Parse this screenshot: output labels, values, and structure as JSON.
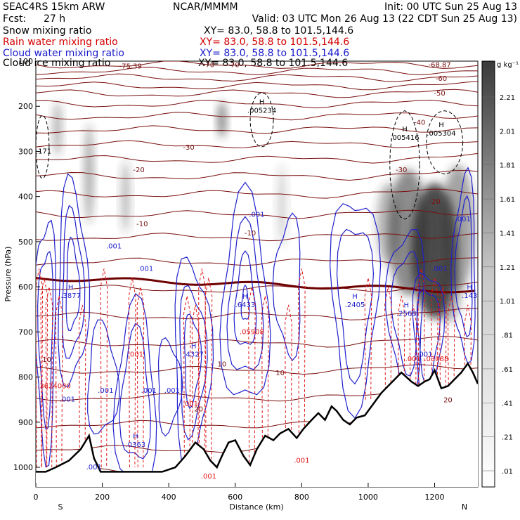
{
  "header": {
    "model": "SEAC4RS 15km ARW",
    "center": "NCAR/MMMM",
    "init": "Init: 00 UTC Sun 25 Aug 13",
    "fcst_label": "Fcst:",
    "fcst_value": "27 h",
    "valid": "Valid: 03 UTC Mon 26 Aug 13 (22 CDT Sun 25 Aug 13)"
  },
  "fields": [
    {
      "name": "Snow mixing ratio",
      "xy": "XY=  83.0, 58.8 to 101.5,144.6",
      "color": "#000000"
    },
    {
      "name": "Rain water mixing ratio",
      "xy": "XY=  83.0, 58.8 to 101.5,144.6",
      "color": "#d40000"
    },
    {
      "name": "Cloud water mixing ratio",
      "xy": "XY=  83.0, 58.8 to 101.5,144.6",
      "color": "#1a1acc"
    },
    {
      "name": "Cloud ice mixing ratio",
      "xy": "XY=  83.0, 58.8 to 101.5,144.6",
      "color": "#000000"
    }
  ],
  "colors": {
    "theta": "#7a0f0f",
    "freezing": "#6e0000",
    "rain": "#e01818",
    "cloud": "#2020cc",
    "ice": "#000000",
    "terrain": "#000000"
  },
  "chart_data": {
    "type": "contour",
    "xlabel": "Distance (km)",
    "ylabel": "Pressure (hPa)",
    "xlim": [
      0,
      1330
    ],
    "ylim": [
      1000,
      100
    ],
    "xticks": [
      0,
      200,
      400,
      600,
      800,
      1000,
      1200
    ],
    "yticks": [
      100,
      200,
      300,
      400,
      500,
      600,
      700,
      800,
      900,
      1000
    ],
    "endpoint_labels": [
      "S",
      "N"
    ],
    "colorbar": {
      "unit": "g kg⁻¹",
      "levels": [
        ".01",
        ".21",
        ".41",
        ".61",
        ".81",
        "1.01",
        "1.21",
        "1.41",
        "1.61",
        "1.81",
        "2.01",
        "2.21"
      ]
    },
    "temperature_contours": [
      {
        "label": "-75.39",
        "x": 285,
        "p": 110
      },
      {
        "label": "-70",
        "x": 520,
        "p": 107
      },
      {
        "label": "-70",
        "x": 595,
        "p": 107
      },
      {
        "label": "-68.87",
        "x": 1215,
        "p": 107
      },
      {
        "label": "-60",
        "x": 1220,
        "p": 137
      },
      {
        "label": "-50",
        "x": 1215,
        "p": 170
      },
      {
        "label": "-40",
        "x": 1155,
        "p": 235
      },
      {
        "label": "-30",
        "x": 460,
        "p": 290
      },
      {
        "label": "-30",
        "x": 1100,
        "p": 340
      },
      {
        "label": "-20",
        "x": 310,
        "p": 340
      },
      {
        "label": "-20",
        "x": 1200,
        "p": 410
      },
      {
        "label": "-10",
        "x": 320,
        "p": 460
      },
      {
        "label": "-10",
        "x": 645,
        "p": 480
      },
      {
        "label": "10",
        "x": 33,
        "p": 760
      },
      {
        "label": "10",
        "x": 560,
        "p": 770
      },
      {
        "label": "10",
        "x": 735,
        "p": 790
      },
      {
        "label": "20",
        "x": 490,
        "p": 870
      },
      {
        "label": "20",
        "x": 1240,
        "p": 850
      }
    ],
    "maxima": [
      {
        "label": "H",
        "value": ".005234",
        "x": 680,
        "p": 210,
        "field": "ice"
      },
      {
        "label": "H",
        "value": ".005416",
        "x": 1110,
        "p": 270,
        "field": "ice"
      },
      {
        "label": "H",
        "value": ".005304",
        "x": 1220,
        "p": 260,
        "field": "ice"
      },
      {
        "label": "H",
        "value": ".3877",
        "x": 105,
        "p": 620,
        "field": "cloud"
      },
      {
        "label": "H",
        "value": ".6433",
        "x": 630,
        "p": 640,
        "field": "cloud"
      },
      {
        "label": "H",
        "value": ".2405",
        "x": 960,
        "p": 640,
        "field": "cloud"
      },
      {
        "label": "H",
        "value": ".2568",
        "x": 1115,
        "p": 660,
        "field": "cloud"
      },
      {
        "label": "H",
        "value": ".143",
        "x": 1305,
        "p": 620,
        "field": "cloud"
      },
      {
        "label": "H",
        "value": ".4327",
        "x": 475,
        "p": 750,
        "field": "cloud"
      },
      {
        "label": "H",
        "value": ".0363",
        "x": 300,
        "p": 950,
        "field": "cloud"
      },
      {
        "label": "",
        "value": ".05908",
        "x": 650,
        "p": 700,
        "field": "rain"
      },
      {
        "label": "",
        "value": ".03088",
        "x": 1205,
        "p": 760,
        "field": "rain"
      },
      {
        "label": "",
        "value": ".3624030",
        "x": 55,
        "p": 820,
        "field": "rain"
      },
      {
        "label": "",
        "value": "1171",
        "x": 20,
        "p": 300,
        "field": "ice"
      }
    ],
    "value_labels": [
      {
        "value": ".001",
        "x": 235,
        "p": 510,
        "field": "cloud"
      },
      {
        "value": ".001",
        "x": 330,
        "p": 560,
        "field": "cloud"
      },
      {
        "value": ".001",
        "x": 665,
        "p": 440,
        "field": "cloud"
      },
      {
        "value": ".001",
        "x": 1285,
        "p": 450,
        "field": "cloud"
      },
      {
        "value": ".001",
        "x": 1215,
        "p": 560,
        "field": "cloud"
      },
      {
        "value": ".001",
        "x": 210,
        "p": 830,
        "field": "cloud"
      },
      {
        "value": ".001",
        "x": 340,
        "p": 830,
        "field": "cloud"
      },
      {
        "value": ".001",
        "x": 410,
        "p": 830,
        "field": "cloud"
      },
      {
        "value": ".001",
        "x": 175,
        "p": 1000,
        "field": "cloud"
      },
      {
        "value": ".001",
        "x": 95,
        "p": 850,
        "field": "cloud"
      },
      {
        "value": ".001",
        "x": 1170,
        "p": 750,
        "field": "cloud"
      },
      {
        "value": ".001",
        "x": 300,
        "p": 750,
        "field": "rain"
      },
      {
        "value": ".001",
        "x": 465,
        "p": 860,
        "field": "rain"
      },
      {
        "value": ".001",
        "x": 1135,
        "p": 760,
        "field": "rain"
      },
      {
        "value": ".001",
        "x": 800,
        "p": 985,
        "field": "rain"
      },
      {
        "value": ".001",
        "x": 520,
        "p": 1020,
        "field": "rain"
      }
    ],
    "terrain": {
      "x": [
        0,
        30,
        60,
        100,
        135,
        160,
        175,
        195,
        220,
        260,
        320,
        380,
        420,
        450,
        480,
        505,
        525,
        545,
        560,
        580,
        600,
        625,
        645,
        665,
        690,
        715,
        735,
        760,
        785,
        805,
        830,
        850,
        870,
        890,
        905,
        925,
        945,
        965,
        990,
        1005,
        1020,
        1040,
        1060,
        1080,
        1100,
        1115,
        1130,
        1150,
        1170,
        1185,
        1200,
        1220,
        1240,
        1260,
        1280,
        1300,
        1315,
        1330
      ],
      "p": [
        1010,
        1010,
        1000,
        985,
        960,
        930,
        980,
        1010,
        1010,
        1010,
        1010,
        1010,
        1000,
        975,
        945,
        960,
        985,
        1000,
        975,
        945,
        940,
        975,
        995,
        960,
        930,
        940,
        925,
        915,
        935,
        915,
        895,
        880,
        895,
        865,
        875,
        895,
        905,
        890,
        885,
        870,
        855,
        835,
        820,
        805,
        790,
        800,
        810,
        820,
        810,
        805,
        785,
        825,
        820,
        805,
        790,
        770,
        790,
        815
      ]
    }
  }
}
